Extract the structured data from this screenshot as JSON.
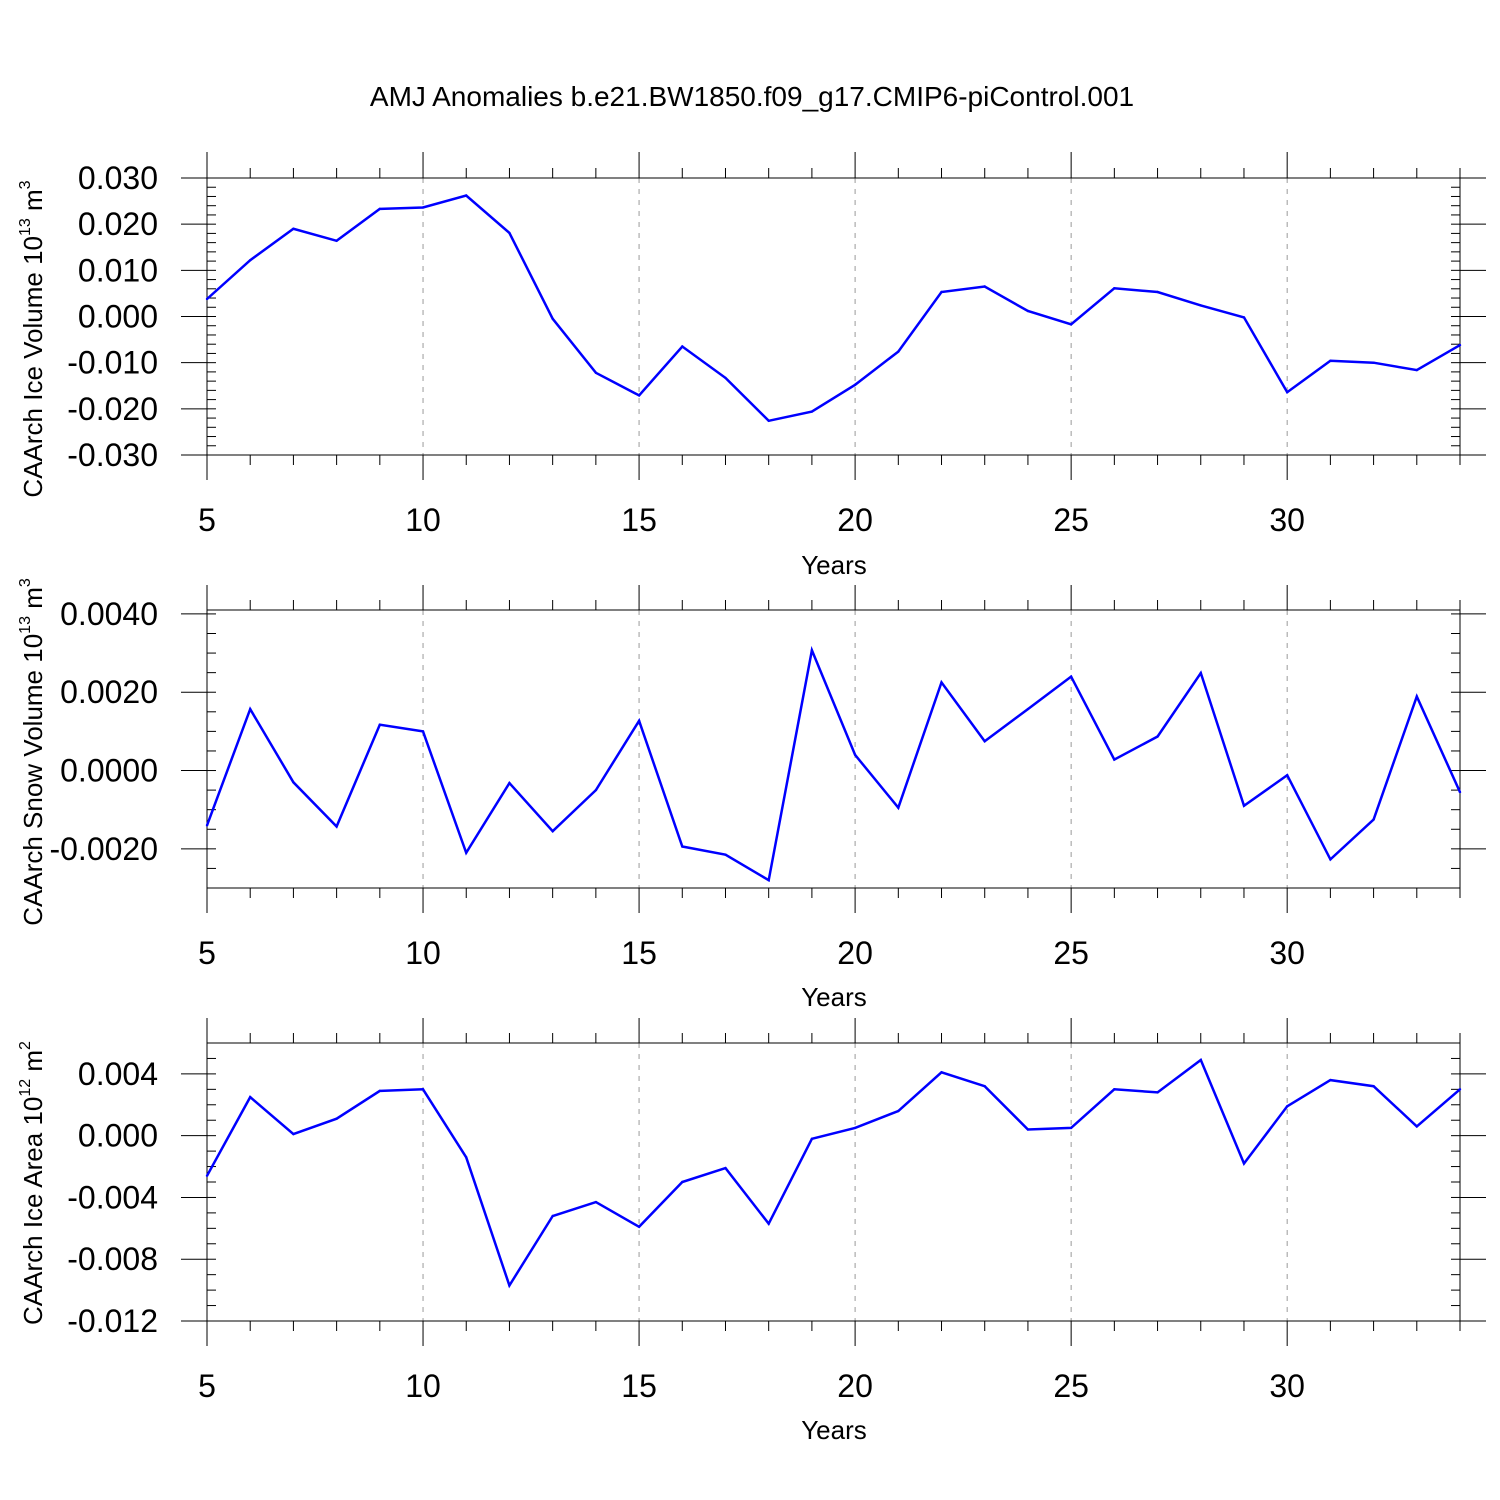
{
  "title": "AMJ Anomalies b.e21.BW1850.f09_g17.CMIP6-piControl.001",
  "line_color": "#0000ff",
  "chart_data": [
    {
      "type": "line",
      "title": "",
      "xlabel": "Years",
      "ylabel": {
        "text": "CAArch Ice Volume 10",
        "exp": "13",
        "unit": "m",
        "unit_exp": "3"
      },
      "xlim": [
        5,
        34
      ],
      "ylim": [
        -0.03,
        0.03
      ],
      "xticks": [
        5,
        10,
        15,
        20,
        25,
        30
      ],
      "yticks": [
        {
          "value": 0.03,
          "label": "0.030"
        },
        {
          "value": 0.02,
          "label": "0.020"
        },
        {
          "value": 0.01,
          "label": "0.010"
        },
        {
          "value": 0.0,
          "label": "0.000"
        },
        {
          "value": -0.01,
          "label": "-0.010"
        },
        {
          "value": -0.02,
          "label": "-0.020"
        },
        {
          "value": -0.03,
          "label": "-0.030"
        }
      ],
      "y_minor_step": 0.002,
      "grid": "x-major dashed",
      "x": [
        5,
        6,
        7,
        8,
        9,
        10,
        11,
        12,
        13,
        14,
        15,
        16,
        17,
        18,
        19,
        20,
        21,
        22,
        23,
        24,
        25,
        26,
        27,
        28,
        29,
        30,
        31,
        32,
        33,
        34
      ],
      "y": [
        0.0038,
        0.0122,
        0.019,
        0.0164,
        0.0233,
        0.0236,
        0.0262,
        0.0181,
        -0.0005,
        -0.0122,
        -0.0171,
        -0.0065,
        -0.0133,
        -0.0226,
        -0.0206,
        -0.0148,
        -0.0076,
        0.0053,
        0.0065,
        0.0012,
        -0.0017,
        0.0061,
        0.0053,
        0.0024,
        -0.0002,
        -0.0164,
        -0.0096,
        -0.01,
        -0.0116,
        -0.0062
      ]
    },
    {
      "type": "line",
      "title": "",
      "xlabel": "Years",
      "ylabel": {
        "text": "CAArch Snow Volume 10",
        "exp": "13",
        "unit": "m",
        "unit_exp": "3"
      },
      "xlim": [
        5,
        34
      ],
      "ylim": [
        -0.003,
        0.0041
      ],
      "xticks": [
        5,
        10,
        15,
        20,
        25,
        30
      ],
      "yticks": [
        {
          "value": 0.004,
          "label": "0.0040"
        },
        {
          "value": 0.002,
          "label": "0.0020"
        },
        {
          "value": 0.0,
          "label": "0.0000"
        },
        {
          "value": -0.002,
          "label": "-0.0020"
        }
      ],
      "y_minor_step": 0.0005,
      "grid": "x-major dashed",
      "x": [
        5,
        6,
        7,
        8,
        9,
        10,
        11,
        12,
        13,
        14,
        15,
        16,
        17,
        18,
        19,
        20,
        21,
        22,
        23,
        24,
        25,
        26,
        27,
        28,
        29,
        30,
        31,
        32,
        33,
        34
      ],
      "y": [
        -0.0014,
        0.00157,
        -0.0003,
        -0.00143,
        0.00117,
        0.001,
        -0.0021,
        -0.00032,
        -0.00155,
        -0.0005,
        0.00127,
        -0.00194,
        -0.00215,
        -0.0028,
        0.00307,
        0.0004,
        -0.00095,
        0.00225,
        0.00075,
        0.00157,
        0.0024,
        0.00028,
        0.00087,
        0.00249,
        -0.0009,
        -0.00012,
        -0.00227,
        -0.00125,
        0.00189,
        -0.00055
      ]
    },
    {
      "type": "line",
      "title": "",
      "xlabel": "Years",
      "ylabel": {
        "text": "CAArch Ice Area 10",
        "exp": "12",
        "unit": "m",
        "unit_exp": "2"
      },
      "xlim": [
        5,
        34
      ],
      "ylim": [
        -0.012,
        0.006
      ],
      "xticks": [
        5,
        10,
        15,
        20,
        25,
        30
      ],
      "yticks": [
        {
          "value": 0.004,
          "label": "0.004"
        },
        {
          "value": 0.0,
          "label": "0.000"
        },
        {
          "value": -0.004,
          "label": "-0.004"
        },
        {
          "value": -0.008,
          "label": "-0.008"
        },
        {
          "value": -0.012,
          "label": "-0.012"
        }
      ],
      "y_minor_step": 0.001,
      "grid": "x-major dashed",
      "x": [
        5,
        6,
        7,
        8,
        9,
        10,
        11,
        12,
        13,
        14,
        15,
        16,
        17,
        18,
        19,
        20,
        21,
        22,
        23,
        24,
        25,
        26,
        27,
        28,
        29,
        30,
        31,
        32,
        33,
        34
      ],
      "y": [
        -0.0026,
        0.0025,
        0.0001,
        0.0011,
        0.0029,
        0.003,
        -0.0014,
        -0.0097,
        -0.0052,
        -0.0043,
        -0.0059,
        -0.003,
        -0.0021,
        -0.0057,
        -0.0002,
        0.0005,
        0.0016,
        0.0041,
        0.0032,
        0.0004,
        0.0005,
        0.003,
        0.0028,
        0.0049,
        -0.0018,
        0.0019,
        0.0036,
        0.0032,
        0.0006,
        0.003
      ]
    }
  ]
}
